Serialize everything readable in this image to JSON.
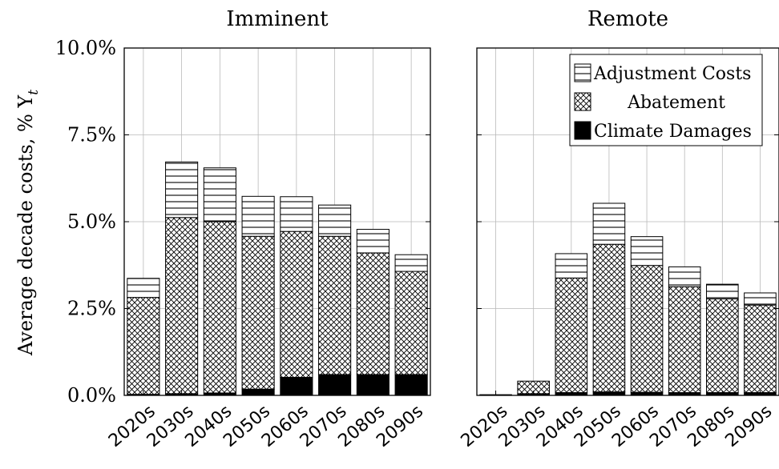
{
  "chart_data": {
    "type": "bar",
    "stacked": true,
    "ylabel": "Average decade costs, % Y",
    "ylabel_subscript": "t",
    "ylim": [
      0,
      0.1
    ],
    "yticks": [
      "0.0%",
      "2.5%",
      "5.0%",
      "7.5%",
      "10.0%"
    ],
    "yticks_values": [
      0,
      0.025,
      0.05,
      0.075,
      0.1
    ],
    "grid": true,
    "legend_position": "top-right of right panel",
    "categories": [
      "2020s",
      "2030s",
      "2040s",
      "2050s",
      "2060s",
      "2070s",
      "2080s",
      "2090s"
    ],
    "series_names": [
      "Adjustment Costs",
      "Abatement",
      "Climate Damages"
    ],
    "panels": [
      {
        "title": "Imminent",
        "series": [
          {
            "name": "Climate Damages",
            "values": [
              0.0003,
              0.0005,
              0.0007,
              0.0018,
              0.0052,
              0.006,
              0.006,
              0.006
            ]
          },
          {
            "name": "Abatement",
            "values": [
              0.0279,
              0.0507,
              0.0493,
              0.044,
              0.042,
              0.0398,
              0.035,
              0.0297
            ]
          },
          {
            "name": "Adjustment Costs",
            "values": [
              0.0055,
              0.016,
              0.0155,
              0.0115,
              0.01,
              0.009,
              0.0068,
              0.0048
            ]
          }
        ]
      },
      {
        "title": "Remote",
        "series": [
          {
            "name": "Climate Damages",
            "values": [
              0.0002,
              0.0005,
              0.0008,
              0.001,
              0.0009,
              0.0008,
              0.0008,
              0.0008
            ]
          },
          {
            "name": "Abatement",
            "values": [
              0.0,
              0.0036,
              0.033,
              0.0425,
              0.0365,
              0.0305,
              0.027,
              0.0252
            ]
          },
          {
            "name": "Adjustment Costs",
            "values": [
              0.0,
              0.0,
              0.007,
              0.0118,
              0.0083,
              0.0057,
              0.0042,
              0.0035
            ]
          }
        ]
      }
    ]
  }
}
